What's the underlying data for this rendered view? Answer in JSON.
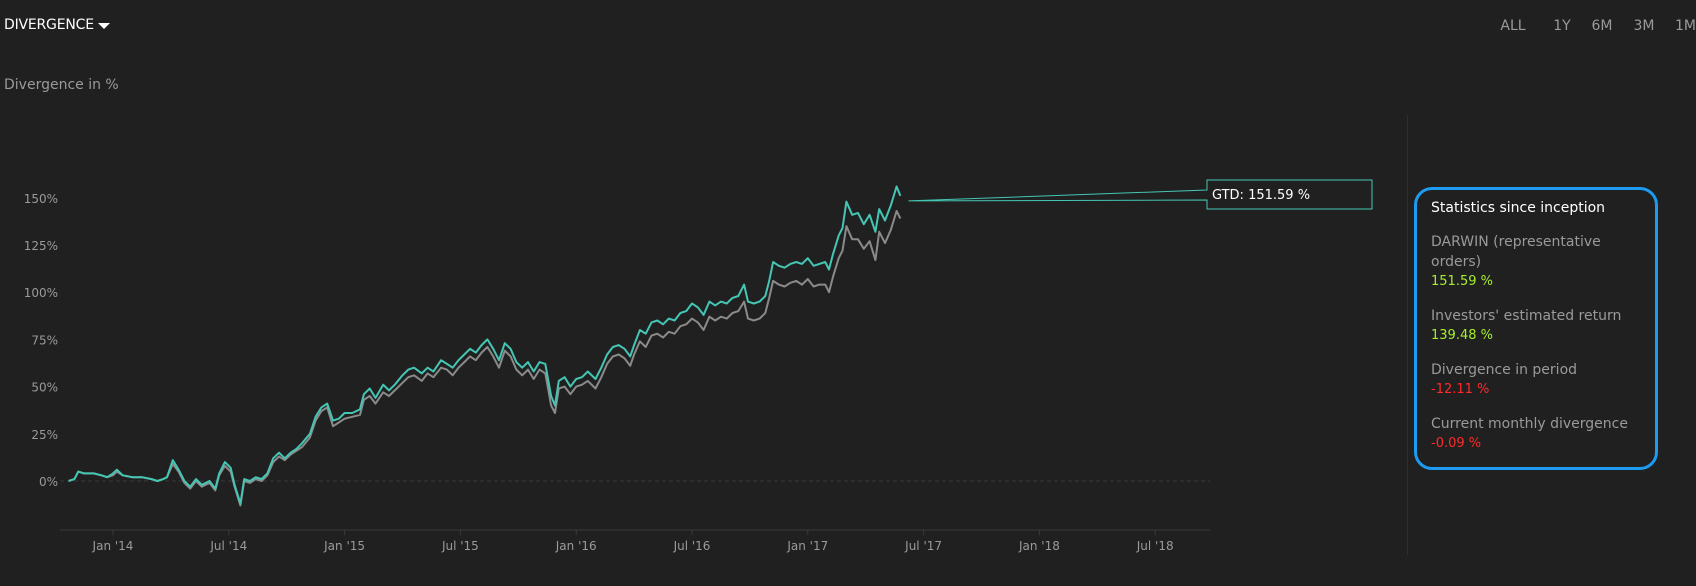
{
  "header": {
    "dropdown_label": "DIVERGENCE",
    "subtitle": "Divergence in %",
    "ranges": [
      "ALL",
      "1Y",
      "6M",
      "3M",
      "1M"
    ],
    "active_range": "ALL"
  },
  "colors": {
    "darwin_line": "#45c6b4",
    "investors_line": "#8a8a8a",
    "accent": "#1d9bf0",
    "positive": "#a6ef2c",
    "negative": "#ff2b2b"
  },
  "chart_data": {
    "type": "line",
    "title": "Divergence in %",
    "ylim": [
      -25,
      175
    ],
    "y_ticks": [
      0,
      25,
      50,
      75,
      100,
      125,
      150
    ],
    "y_tick_labels": [
      "0%",
      "25%",
      "50%",
      "75%",
      "100%",
      "125%",
      "150%"
    ],
    "x_ticks": [
      "Jan '14",
      "Jul '14",
      "Jan '15",
      "Jul '15",
      "Jan '16",
      "Jul '16",
      "Jan '17",
      "Jul '17",
      "Jan '18",
      "Jul '18"
    ],
    "x_range_months": [
      -2.5,
      17.1
    ],
    "tooltip": "GTD: 151.59 %",
    "series": [
      {
        "name": "DARWIN (representative orders)",
        "points": [
          [
            -2.3,
            0
          ],
          [
            -2.0,
            1
          ],
          [
            -1.8,
            5
          ],
          [
            -1.5,
            4
          ],
          [
            -1.0,
            4
          ],
          [
            -0.6,
            3
          ],
          [
            -0.3,
            2
          ],
          [
            0.0,
            4
          ],
          [
            0.2,
            6
          ],
          [
            0.5,
            3
          ],
          [
            1.0,
            2
          ],
          [
            1.5,
            2
          ],
          [
            2.0,
            1
          ],
          [
            2.3,
            0
          ],
          [
            2.6,
            1
          ],
          [
            2.8,
            2
          ],
          [
            3.1,
            11
          ],
          [
            3.4,
            6
          ],
          [
            3.7,
            0
          ],
          [
            4.0,
            -3
          ],
          [
            4.3,
            1
          ],
          [
            4.6,
            -2
          ],
          [
            5.0,
            0
          ],
          [
            5.3,
            -4
          ],
          [
            5.5,
            4
          ],
          [
            5.8,
            10
          ],
          [
            6.1,
            7
          ],
          [
            6.3,
            -2
          ],
          [
            6.6,
            -12
          ],
          [
            6.8,
            1
          ],
          [
            7.1,
            0
          ],
          [
            7.4,
            2
          ],
          [
            7.7,
            1
          ],
          [
            8.0,
            4
          ],
          [
            8.3,
            12
          ],
          [
            8.6,
            15
          ],
          [
            8.9,
            12
          ],
          [
            9.2,
            15
          ],
          [
            9.5,
            17
          ],
          [
            9.8,
            20
          ],
          [
            10.2,
            25
          ],
          [
            10.5,
            34
          ],
          [
            10.8,
            39
          ],
          [
            11.1,
            41
          ],
          [
            11.4,
            32
          ],
          [
            11.7,
            33
          ],
          [
            12.0,
            36
          ],
          [
            12.4,
            36
          ],
          [
            12.8,
            38
          ],
          [
            13.0,
            46
          ],
          [
            13.3,
            49
          ],
          [
            13.6,
            44
          ],
          [
            14.0,
            51
          ],
          [
            14.3,
            48
          ],
          [
            14.6,
            51
          ],
          [
            15.0,
            56
          ],
          [
            15.3,
            59
          ],
          [
            15.6,
            60
          ],
          [
            16.0,
            57
          ],
          [
            16.3,
            60
          ],
          [
            16.6,
            58
          ],
          [
            17.0,
            64
          ],
          [
            17.3,
            62
          ],
          [
            17.6,
            60
          ],
          [
            17.9,
            64
          ],
          [
            18.2,
            67
          ],
          [
            18.5,
            70
          ],
          [
            18.8,
            68
          ],
          [
            19.1,
            72
          ],
          [
            19.4,
            75
          ],
          [
            19.7,
            70
          ],
          [
            20.0,
            64
          ],
          [
            20.3,
            73
          ],
          [
            20.6,
            70
          ],
          [
            20.9,
            63
          ],
          [
            21.2,
            60
          ],
          [
            21.5,
            63
          ],
          [
            21.8,
            58
          ],
          [
            22.1,
            63
          ],
          [
            22.4,
            62
          ],
          [
            22.7,
            45
          ],
          [
            22.9,
            40
          ],
          [
            23.1,
            53
          ],
          [
            23.4,
            55
          ],
          [
            23.7,
            50
          ],
          [
            24.0,
            54
          ],
          [
            24.3,
            55
          ],
          [
            24.6,
            58
          ],
          [
            25.0,
            54
          ],
          [
            25.3,
            60
          ],
          [
            25.6,
            67
          ],
          [
            25.9,
            71
          ],
          [
            26.2,
            72
          ],
          [
            26.5,
            70
          ],
          [
            26.8,
            66
          ],
          [
            27.0,
            72
          ],
          [
            27.3,
            80
          ],
          [
            27.6,
            78
          ],
          [
            27.9,
            84
          ],
          [
            28.2,
            85
          ],
          [
            28.5,
            83
          ],
          [
            28.8,
            86
          ],
          [
            29.1,
            85
          ],
          [
            29.4,
            89
          ],
          [
            29.7,
            90
          ],
          [
            30.0,
            94
          ],
          [
            30.3,
            92
          ],
          [
            30.6,
            88
          ],
          [
            30.9,
            95
          ],
          [
            31.2,
            93
          ],
          [
            31.5,
            95
          ],
          [
            31.8,
            94
          ],
          [
            32.1,
            97
          ],
          [
            32.4,
            98
          ],
          [
            32.7,
            104
          ],
          [
            32.9,
            95
          ],
          [
            33.2,
            94
          ],
          [
            33.5,
            95
          ],
          [
            33.8,
            98
          ],
          [
            34.0,
            106
          ],
          [
            34.2,
            116
          ],
          [
            34.5,
            114
          ],
          [
            34.8,
            113
          ],
          [
            35.1,
            115
          ],
          [
            35.4,
            116
          ],
          [
            35.7,
            115
          ],
          [
            36.0,
            118
          ],
          [
            36.3,
            114
          ],
          [
            36.6,
            115
          ],
          [
            36.9,
            116
          ],
          [
            37.1,
            112
          ],
          [
            37.3,
            120
          ],
          [
            37.6,
            130
          ],
          [
            37.8,
            134
          ],
          [
            38.0,
            148
          ],
          [
            38.3,
            141
          ],
          [
            38.6,
            142
          ],
          [
            38.9,
            136
          ],
          [
            39.2,
            141
          ],
          [
            39.5,
            132
          ],
          [
            39.7,
            144
          ],
          [
            40.0,
            138
          ],
          [
            40.3,
            146
          ],
          [
            40.6,
            156
          ],
          [
            40.8,
            151
          ]
        ]
      },
      {
        "name": "Investors' estimated return",
        "points": [
          [
            -2.3,
            0
          ],
          [
            -2.0,
            1
          ],
          [
            -1.8,
            5
          ],
          [
            -1.5,
            4
          ],
          [
            -1.0,
            4
          ],
          [
            -0.6,
            3
          ],
          [
            -0.3,
            2
          ],
          [
            0.0,
            3
          ],
          [
            0.2,
            5
          ],
          [
            0.5,
            3
          ],
          [
            1.0,
            2
          ],
          [
            1.5,
            2
          ],
          [
            2.0,
            1
          ],
          [
            2.3,
            0
          ],
          [
            2.6,
            1
          ],
          [
            2.8,
            2
          ],
          [
            3.1,
            9
          ],
          [
            3.4,
            5
          ],
          [
            3.7,
            -1
          ],
          [
            4.0,
            -4
          ],
          [
            4.3,
            0
          ],
          [
            4.6,
            -3
          ],
          [
            5.0,
            -1
          ],
          [
            5.3,
            -5
          ],
          [
            5.5,
            3
          ],
          [
            5.8,
            8
          ],
          [
            6.1,
            5
          ],
          [
            6.3,
            -3
          ],
          [
            6.6,
            -13
          ],
          [
            6.8,
            0
          ],
          [
            7.1,
            -1
          ],
          [
            7.4,
            1
          ],
          [
            7.7,
            0
          ],
          [
            8.0,
            3
          ],
          [
            8.3,
            10
          ],
          [
            8.6,
            13
          ],
          [
            8.9,
            11
          ],
          [
            9.2,
            14
          ],
          [
            9.5,
            16
          ],
          [
            9.8,
            18
          ],
          [
            10.2,
            23
          ],
          [
            10.5,
            32
          ],
          [
            10.8,
            37
          ],
          [
            11.1,
            39
          ],
          [
            11.4,
            29
          ],
          [
            11.7,
            31
          ],
          [
            12.0,
            33
          ],
          [
            12.4,
            34
          ],
          [
            12.8,
            35
          ],
          [
            13.0,
            43
          ],
          [
            13.3,
            45
          ],
          [
            13.6,
            41
          ],
          [
            14.0,
            47
          ],
          [
            14.3,
            45
          ],
          [
            14.6,
            48
          ],
          [
            15.0,
            52
          ],
          [
            15.3,
            55
          ],
          [
            15.6,
            56
          ],
          [
            16.0,
            53
          ],
          [
            16.3,
            57
          ],
          [
            16.6,
            55
          ],
          [
            17.0,
            60
          ],
          [
            17.3,
            59
          ],
          [
            17.6,
            56
          ],
          [
            17.9,
            60
          ],
          [
            18.2,
            63
          ],
          [
            18.5,
            66
          ],
          [
            18.8,
            64
          ],
          [
            19.1,
            68
          ],
          [
            19.4,
            71
          ],
          [
            19.7,
            66
          ],
          [
            20.0,
            60
          ],
          [
            20.3,
            69
          ],
          [
            20.6,
            66
          ],
          [
            20.9,
            59
          ],
          [
            21.2,
            56
          ],
          [
            21.5,
            59
          ],
          [
            21.8,
            54
          ],
          [
            22.1,
            59
          ],
          [
            22.4,
            57
          ],
          [
            22.7,
            40
          ],
          [
            22.9,
            36
          ],
          [
            23.1,
            49
          ],
          [
            23.4,
            50
          ],
          [
            23.7,
            46
          ],
          [
            24.0,
            50
          ],
          [
            24.3,
            51
          ],
          [
            24.6,
            53
          ],
          [
            25.0,
            49
          ],
          [
            25.3,
            55
          ],
          [
            25.6,
            62
          ],
          [
            25.9,
            66
          ],
          [
            26.2,
            67
          ],
          [
            26.5,
            65
          ],
          [
            26.8,
            61
          ],
          [
            27.0,
            67
          ],
          [
            27.3,
            74
          ],
          [
            27.6,
            71
          ],
          [
            27.9,
            77
          ],
          [
            28.2,
            78
          ],
          [
            28.5,
            76
          ],
          [
            28.8,
            79
          ],
          [
            29.1,
            78
          ],
          [
            29.4,
            82
          ],
          [
            29.7,
            83
          ],
          [
            30.0,
            86
          ],
          [
            30.3,
            84
          ],
          [
            30.6,
            80
          ],
          [
            30.9,
            87
          ],
          [
            31.2,
            85
          ],
          [
            31.5,
            87
          ],
          [
            31.8,
            86
          ],
          [
            32.1,
            89
          ],
          [
            32.4,
            90
          ],
          [
            32.7,
            95
          ],
          [
            32.9,
            86
          ],
          [
            33.2,
            85
          ],
          [
            33.5,
            86
          ],
          [
            33.8,
            89
          ],
          [
            34.0,
            97
          ],
          [
            34.2,
            106
          ],
          [
            34.5,
            104
          ],
          [
            34.8,
            103
          ],
          [
            35.1,
            105
          ],
          [
            35.4,
            106
          ],
          [
            35.7,
            104
          ],
          [
            36.0,
            107
          ],
          [
            36.3,
            103
          ],
          [
            36.6,
            104
          ],
          [
            36.9,
            104
          ],
          [
            37.1,
            100
          ],
          [
            37.3,
            108
          ],
          [
            37.6,
            118
          ],
          [
            37.8,
            122
          ],
          [
            38.0,
            135
          ],
          [
            38.3,
            128
          ],
          [
            38.6,
            128
          ],
          [
            38.9,
            123
          ],
          [
            39.2,
            127
          ],
          [
            39.5,
            117
          ],
          [
            39.7,
            132
          ],
          [
            40.0,
            126
          ],
          [
            40.3,
            133
          ],
          [
            40.6,
            143
          ],
          [
            40.8,
            139
          ]
        ]
      }
    ]
  },
  "stats": {
    "title": "Statistics since inception",
    "items": [
      {
        "label": "DARWIN (representative orders)",
        "value": "151.59 %",
        "sign": "pos"
      },
      {
        "label": "Investors' estimated return",
        "value": "139.48 %",
        "sign": "pos"
      },
      {
        "label": "Divergence in period",
        "value": "-12.11 %",
        "sign": "neg"
      },
      {
        "label": "Current monthly divergence",
        "value": "-0.09 %",
        "sign": "neg"
      }
    ]
  }
}
